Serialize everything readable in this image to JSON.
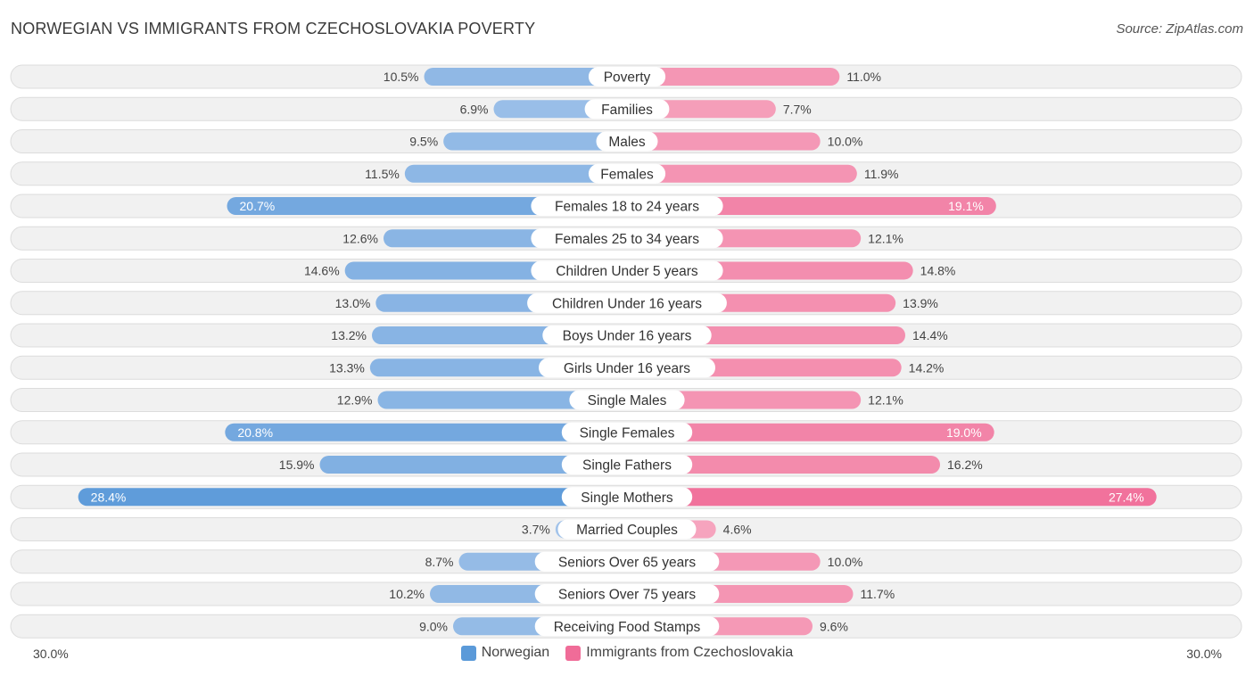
{
  "header": {
    "title": "NORWEGIAN VS IMMIGRANTS FROM CZECHOSLOVAKIA POVERTY",
    "source": "Source: ZipAtlas.com"
  },
  "axis": {
    "left_label": "30.0%",
    "right_label": "30.0%"
  },
  "legend": {
    "left_label": "Norwegian",
    "right_label": "Immigrants from Czechoslovakia"
  },
  "colors": {
    "left_light": "#a4c4ea",
    "left_dark": "#5b9ad9",
    "right_light": "#f6a8c0",
    "right_dark": "#f06c98",
    "row_bg": "#f1f1f1",
    "row_border": "#dcdcdc"
  },
  "chart_data": {
    "type": "bar",
    "orientation": "horizontal-diverging",
    "title": "NORWEGIAN VS IMMIGRANTS FROM CZECHOSLOVAKIA POVERTY",
    "xlim": [
      -30,
      30
    ],
    "unit": "%",
    "categories": [
      "Poverty",
      "Families",
      "Males",
      "Females",
      "Females 18 to 24 years",
      "Females 25 to 34 years",
      "Children Under 5 years",
      "Children Under 16 years",
      "Boys Under 16 years",
      "Girls Under 16 years",
      "Single Males",
      "Single Females",
      "Single Fathers",
      "Single Mothers",
      "Married Couples",
      "Seniors Over 65 years",
      "Seniors Over 75 years",
      "Receiving Food Stamps"
    ],
    "series": [
      {
        "name": "Norwegian",
        "values": [
          10.5,
          6.9,
          9.5,
          11.5,
          20.7,
          12.6,
          14.6,
          13.0,
          13.2,
          13.3,
          12.9,
          20.8,
          15.9,
          28.4,
          3.7,
          8.7,
          10.2,
          9.0
        ],
        "labels": [
          "10.5%",
          "6.9%",
          "9.5%",
          "11.5%",
          "20.7%",
          "12.6%",
          "14.6%",
          "13.0%",
          "13.2%",
          "13.3%",
          "12.9%",
          "20.8%",
          "15.9%",
          "28.4%",
          "3.7%",
          "8.7%",
          "10.2%",
          "9.0%"
        ]
      },
      {
        "name": "Immigrants from Czechoslovakia",
        "values": [
          11.0,
          7.7,
          10.0,
          11.9,
          19.1,
          12.1,
          14.8,
          13.9,
          14.4,
          14.2,
          12.1,
          19.0,
          16.2,
          27.4,
          4.6,
          10.0,
          11.7,
          9.6
        ],
        "labels": [
          "11.0%",
          "7.7%",
          "10.0%",
          "11.9%",
          "19.1%",
          "12.1%",
          "14.8%",
          "13.9%",
          "14.4%",
          "14.2%",
          "12.1%",
          "19.0%",
          "16.2%",
          "27.4%",
          "4.6%",
          "10.0%",
          "11.7%",
          "9.6%"
        ]
      }
    ]
  }
}
